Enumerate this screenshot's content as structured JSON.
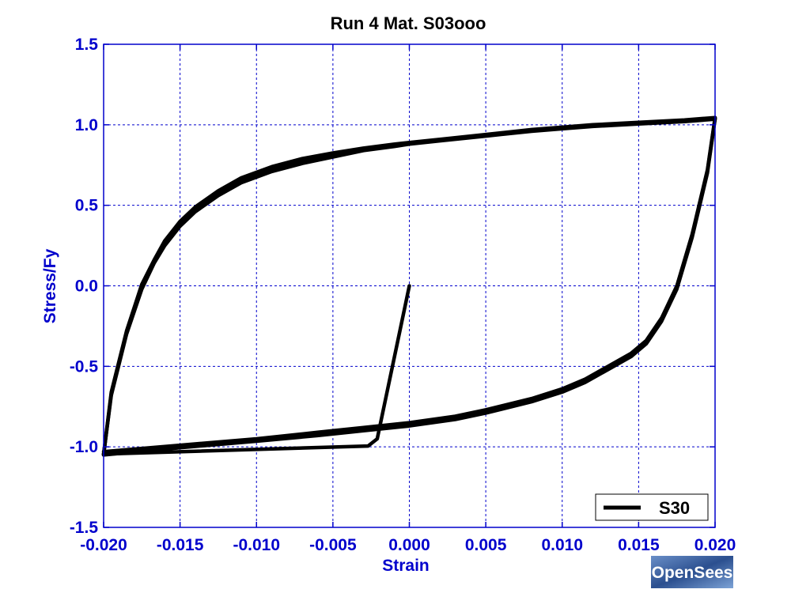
{
  "chart_data": {
    "type": "line",
    "title": "Run 4    Mat. S03ooo",
    "xlabel": "Strain",
    "ylabel": "Stress/Fy",
    "xlim": [
      -0.02,
      0.02
    ],
    "ylim": [
      -1.5,
      1.5
    ],
    "xticks": [
      -0.02,
      -0.015,
      -0.01,
      -0.005,
      0.0,
      0.005,
      0.01,
      0.015,
      0.02
    ],
    "xtick_labels": [
      "-0.020",
      "-0.015",
      "-0.010",
      "-0.005",
      "0.000",
      "0.005",
      "0.010",
      "0.015",
      "0.020"
    ],
    "yticks": [
      -1.5,
      -1.0,
      -0.5,
      0.0,
      0.5,
      1.0,
      1.5
    ],
    "ytick_labels": [
      "-1.5",
      "-1.0",
      "-0.5",
      "0.0",
      "0.5",
      "1.0",
      "1.5"
    ],
    "grid": true,
    "legend_position": "bottom-right",
    "colors": {
      "axis_text": "#0000cc",
      "grid": "#0000cc",
      "series": "#000000"
    },
    "series": [
      {
        "name": "S30",
        "color": "#000000",
        "segments": [
          {
            "x": [
              0.0,
              -0.0021,
              -0.0027,
              -0.02
            ],
            "y": [
              0.0,
              -0.95,
              -0.995,
              -1.045
            ]
          },
          {
            "x": [
              -0.02,
              -0.0195,
              -0.0185,
              -0.0175,
              -0.0167,
              -0.016,
              -0.015,
              -0.014,
              -0.0125,
              -0.011,
              -0.009,
              -0.007,
              -0.005,
              -0.003,
              -0.001,
              0.0,
              0.002,
              0.005,
              0.008,
              0.01,
              0.012,
              0.015,
              0.018,
              0.02
            ],
            "y": [
              -1.045,
              -0.68,
              -0.3,
              -0.02,
              0.14,
              0.25,
              0.37,
              0.46,
              0.56,
              0.64,
              0.71,
              0.76,
              0.8,
              0.84,
              0.865,
              0.88,
              0.9,
              0.93,
              0.96,
              0.975,
              0.99,
              1.005,
              1.02,
              1.035
            ]
          },
          {
            "x": [
              0.02,
              0.0195,
              0.0185,
              0.0175,
              0.0165,
              0.0155,
              0.0145,
              0.013,
              0.0115,
              0.01,
              0.008,
              0.005,
              0.003,
              0.0,
              -0.003,
              -0.006,
              -0.01,
              -0.015,
              -0.02
            ],
            "y": [
              1.035,
              0.7,
              0.3,
              -0.02,
              -0.22,
              -0.36,
              -0.44,
              -0.52,
              -0.6,
              -0.66,
              -0.72,
              -0.79,
              -0.83,
              -0.87,
              -0.9,
              -0.93,
              -0.965,
              -1.005,
              -1.05
            ]
          },
          {
            "x": [
              -0.02,
              -0.0195,
              -0.0185,
              -0.0175,
              -0.0167,
              -0.016,
              -0.015,
              -0.014,
              -0.0125,
              -0.011,
              -0.009,
              -0.007,
              -0.005,
              -0.003,
              -0.001,
              0.0,
              0.002,
              0.005,
              0.008,
              0.01,
              0.012,
              0.015,
              0.018,
              0.02
            ],
            "y": [
              -1.05,
              -0.67,
              -0.29,
              0.0,
              0.15,
              0.26,
              0.38,
              0.47,
              0.57,
              0.65,
              0.72,
              0.77,
              0.81,
              0.845,
              0.87,
              0.885,
              0.905,
              0.935,
              0.965,
              0.98,
              0.995,
              1.01,
              1.025,
              1.04
            ]
          },
          {
            "x": [
              0.02,
              0.0195,
              0.0185,
              0.0175,
              0.0165,
              0.0155,
              0.0145,
              0.013,
              0.0115,
              0.01,
              0.008,
              0.005,
              0.003,
              0.0,
              -0.003,
              -0.006,
              -0.01,
              -0.015,
              -0.02
            ],
            "y": [
              1.04,
              0.71,
              0.31,
              -0.01,
              -0.21,
              -0.35,
              -0.43,
              -0.51,
              -0.59,
              -0.65,
              -0.71,
              -0.78,
              -0.82,
              -0.86,
              -0.89,
              -0.92,
              -0.96,
              -1.0,
              -1.045
            ]
          },
          {
            "x": [
              -0.02,
              -0.0195,
              -0.0185,
              -0.0175,
              -0.0167,
              -0.016,
              -0.015,
              -0.014,
              -0.0125,
              -0.011,
              -0.009,
              -0.007,
              -0.005,
              -0.003,
              -0.001,
              0.0,
              0.002,
              0.005,
              0.008,
              0.01,
              0.012,
              0.015,
              0.018,
              0.02
            ],
            "y": [
              -1.045,
              -0.66,
              -0.28,
              0.01,
              0.16,
              0.28,
              0.4,
              0.49,
              0.59,
              0.67,
              0.74,
              0.79,
              0.825,
              0.855,
              0.88,
              0.89,
              0.91,
              0.94,
              0.97,
              0.985,
              1.0,
              1.015,
              1.03,
              1.045
            ]
          },
          {
            "x": [
              0.02,
              0.0195,
              0.0185,
              0.0175,
              0.0165,
              0.0155,
              0.0145,
              0.013,
              0.0115,
              0.01,
              0.008,
              0.005,
              0.003,
              0.0,
              -0.003,
              -0.006,
              -0.01,
              -0.015,
              -0.02
            ],
            "y": [
              1.045,
              0.72,
              0.32,
              0.0,
              -0.2,
              -0.34,
              -0.42,
              -0.5,
              -0.58,
              -0.64,
              -0.7,
              -0.77,
              -0.81,
              -0.85,
              -0.88,
              -0.91,
              -0.95,
              -0.99,
              -1.03
            ]
          }
        ]
      }
    ]
  },
  "logo": {
    "text": "OpenSees"
  }
}
